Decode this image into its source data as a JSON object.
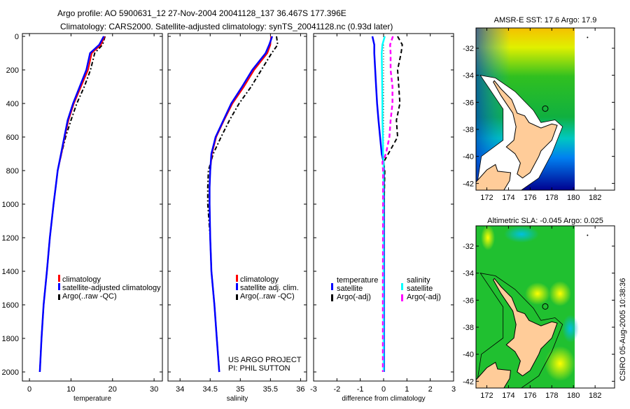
{
  "title": {
    "line1": "Argo profile: AO 5900631_12 27-Nov-2004 20041128_137 36.467S 177.396E",
    "line2": "Climatology: CARS2000. Satellite-adjusted climatology: synTS_20041128.nc (0.93d later)"
  },
  "credit": "CSIRO 05-Aug-2005 10:38:36",
  "project": {
    "line1": "US ARGO PROJECT",
    "line2": "PI: PHIL SUTTON"
  },
  "colors": {
    "climatology": "#ff0000",
    "satellite": "#0000ff",
    "argo": "#000000",
    "sal_satellite": "#00ffff",
    "sal_argo": "#ff00ff"
  },
  "chart_data": [
    {
      "type": "line",
      "id": "temperature",
      "xlabel": "temperature",
      "ylabel": "",
      "xlim": [
        -1.7,
        32
      ],
      "ylim": [
        2000,
        0
      ],
      "xticks": [
        0,
        10,
        20,
        30
      ],
      "yticks": [
        0,
        200,
        400,
        600,
        800,
        1000,
        1200,
        1400,
        1600,
        1800,
        2000
      ],
      "pressure": [
        0,
        50,
        100,
        200,
        300,
        400,
        500,
        600,
        700,
        800,
        900,
        1000,
        1200,
        1400,
        1600,
        1800,
        2000
      ],
      "series": [
        {
          "name": "climatology",
          "values": [
            18.1,
            17.2,
            15.0,
            14.1,
            12.4,
            10.7,
            9.4,
            8.5,
            7.7,
            6.8,
            6.3,
            5.8,
            4.9,
            4.2,
            3.4,
            2.9,
            2.5
          ]
        },
        {
          "name": "satellite-adjusted climatology",
          "values": [
            17.9,
            16.8,
            14.6,
            13.7,
            12.1,
            10.5,
            9.2,
            8.4,
            7.6,
            6.8,
            6.3,
            5.8,
            4.9,
            4.2,
            3.4,
            2.9,
            2.5
          ]
        },
        {
          "name": "Argo(..raw -QC)",
          "values": [
            18.2,
            17.6,
            15.7,
            14.7,
            13.2,
            11.4,
            10.0,
            8.7,
            7.7,
            6.8,
            6.3,
            5.8,
            4.9,
            4.2,
            3.4,
            2.9,
            2.5
          ]
        }
      ],
      "legend": [
        "climatology",
        "satellite-adjusted climatology",
        "Argo(..raw -QC)"
      ],
      "legend_placement": "lower-right"
    },
    {
      "type": "line",
      "id": "salinity",
      "xlabel": "salinity",
      "ylabel": "",
      "xlim": [
        33.8,
        36.1
      ],
      "ylim": [
        2000,
        0
      ],
      "xticks": [
        34,
        34.5,
        35,
        35.5,
        36
      ],
      "pressure": [
        0,
        50,
        100,
        200,
        300,
        400,
        500,
        600,
        700,
        800,
        900,
        1000,
        1200,
        1400,
        1600,
        1800,
        2000
      ],
      "series": [
        {
          "name": "climatology",
          "values": [
            35.51,
            35.5,
            35.45,
            35.23,
            35.06,
            34.87,
            34.73,
            34.6,
            34.53,
            34.5,
            34.49,
            34.49,
            34.5,
            34.52,
            34.57,
            34.61,
            34.65
          ]
        },
        {
          "name": "satellite adj. clim.",
          "values": [
            35.53,
            35.48,
            35.42,
            35.2,
            35.03,
            34.85,
            34.72,
            34.59,
            34.52,
            34.5,
            34.49,
            34.49,
            34.5,
            34.52,
            34.57,
            34.61,
            34.65
          ]
        },
        {
          "name": "Argo(..raw -QC)",
          "values": [
            35.6,
            35.62,
            35.52,
            35.35,
            35.18,
            34.98,
            34.82,
            34.68,
            34.55,
            34.47,
            34.46,
            34.46,
            34.5,
            34.52,
            34.57,
            34.61,
            34.65
          ]
        }
      ],
      "legend": [
        "climatology",
        "satellite adj. clim.",
        "Argo(..raw -QC)"
      ],
      "legend_placement": "lower-right"
    },
    {
      "type": "line",
      "id": "difference",
      "xlabel": "difference from climatology",
      "xlim": [
        -3,
        3
      ],
      "ylim": [
        2000,
        0
      ],
      "xticks": [
        -3,
        -2,
        -1,
        0,
        1,
        2,
        3
      ],
      "pressure": [
        0,
        50,
        100,
        200,
        300,
        400,
        500,
        600,
        700,
        750,
        800,
        1000,
        1500,
        2000
      ],
      "series": [
        {
          "name": "temperature satellite",
          "values": [
            -0.48,
            -0.4,
            -0.4,
            -0.36,
            -0.32,
            -0.28,
            -0.22,
            -0.15,
            -0.08,
            0,
            0.02,
            0.02,
            0.02,
            0.02
          ]
        },
        {
          "name": "temperature Argo(-adj)",
          "values": [
            0.6,
            0.8,
            0.75,
            0.6,
            0.65,
            0.7,
            0.55,
            0.6,
            0.2,
            0,
            0.05,
            0.02,
            0.0,
            0.0
          ]
        },
        {
          "name": "salinity satellite",
          "values": [
            0.05,
            -0.05,
            -0.08,
            -0.07,
            -0.06,
            -0.05,
            -0.05,
            -0.03,
            -0.02,
            0,
            0,
            0,
            0,
            0
          ]
        },
        {
          "name": "salinity Argo(-adj)",
          "values": [
            0.4,
            0.28,
            0.3,
            0.3,
            0.38,
            0.38,
            0.3,
            0.25,
            0.1,
            -0.05,
            -0.02,
            -0.02,
            -0.03,
            -0.03
          ]
        }
      ],
      "legend_left": {
        "title": "temperature",
        "items": [
          "satellite",
          "Argo(-adj)"
        ]
      },
      "legend_right": {
        "title": "salinity",
        "items": [
          "satellite",
          "Argo(-adj)"
        ]
      }
    },
    {
      "type": "heatmap",
      "id": "sst-map",
      "title": "AMSR-E SST: 17.6 Argo: 17.9",
      "xlim": [
        171,
        183.8
      ],
      "ylim": [
        -42.5,
        -30.5
      ],
      "xticks": [
        172,
        174,
        176,
        178,
        180,
        182
      ],
      "yticks": [
        -32,
        -34,
        -36,
        -38,
        -40,
        -42
      ],
      "argo_position": [
        177.396,
        -36.467
      ]
    },
    {
      "type": "heatmap",
      "id": "sla-map",
      "title": "Altimetric SLA: -0.045 Argo: 0.025",
      "xlim": [
        171,
        183.8
      ],
      "ylim": [
        -42.5,
        -30.5
      ],
      "xticks": [
        172,
        174,
        176,
        178,
        180,
        182
      ],
      "yticks": [
        -32,
        -34,
        -36,
        -38,
        -40,
        -42
      ],
      "argo_position": [
        177.396,
        -36.467
      ]
    }
  ]
}
